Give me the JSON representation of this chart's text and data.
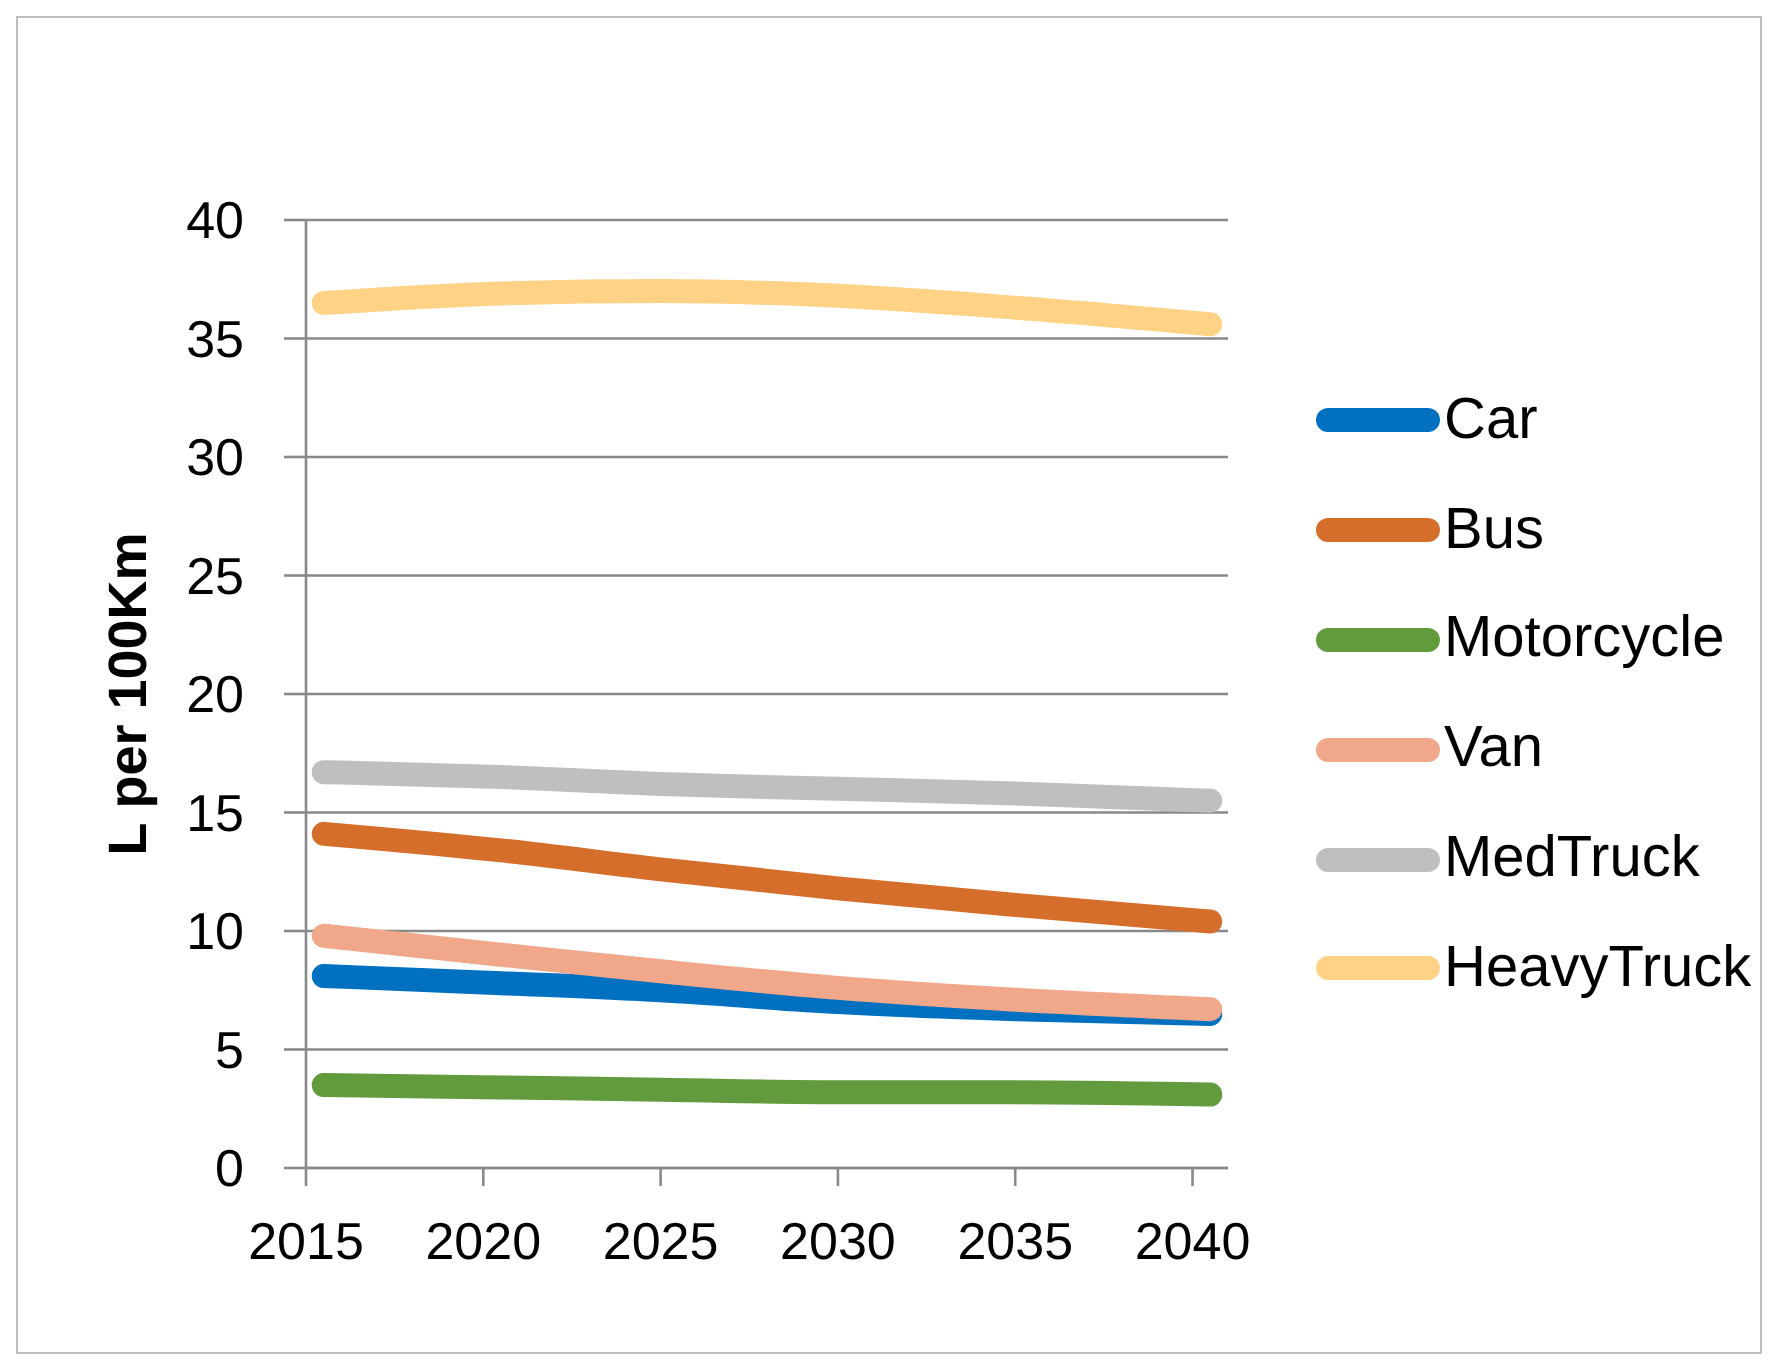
{
  "chart_data": {
    "type": "line",
    "ylabel": "L per 100Km",
    "x": [
      2015.5,
      2020.5,
      2025,
      2030,
      2035,
      2040.5
    ],
    "series": [
      {
        "name": "Car",
        "color": "#0070c0",
        "values": [
          8.1,
          7.8,
          7.5,
          7.0,
          6.7,
          6.5
        ]
      },
      {
        "name": "Bus",
        "color": "#d46e2a",
        "values": [
          14.1,
          13.4,
          12.6,
          11.8,
          11.1,
          10.4
        ]
      },
      {
        "name": "Motorcycle",
        "color": "#629b3e",
        "values": [
          3.5,
          3.4,
          3.3,
          3.2,
          3.2,
          3.1
        ]
      },
      {
        "name": "Van",
        "color": "#f1a78a",
        "values": [
          9.8,
          9.0,
          8.3,
          7.6,
          7.1,
          6.7
        ]
      },
      {
        "name": "MedTruck",
        "color": "#bfbfbf",
        "values": [
          16.7,
          16.5,
          16.2,
          16.0,
          15.8,
          15.5
        ]
      },
      {
        "name": "HeavyTruck",
        "color": "#ffd285",
        "values": [
          36.5,
          36.9,
          37.0,
          36.8,
          36.3,
          35.6
        ]
      }
    ],
    "xlim": [
      2015,
      2041
    ],
    "xticks": [
      2015,
      2020,
      2025,
      2030,
      2035,
      2040
    ],
    "ylim": [
      0,
      40
    ],
    "yticks": [
      0,
      5,
      10,
      15,
      20,
      25,
      30,
      35,
      40
    ],
    "grid": "y",
    "legend": "right",
    "line_style": "solid"
  }
}
